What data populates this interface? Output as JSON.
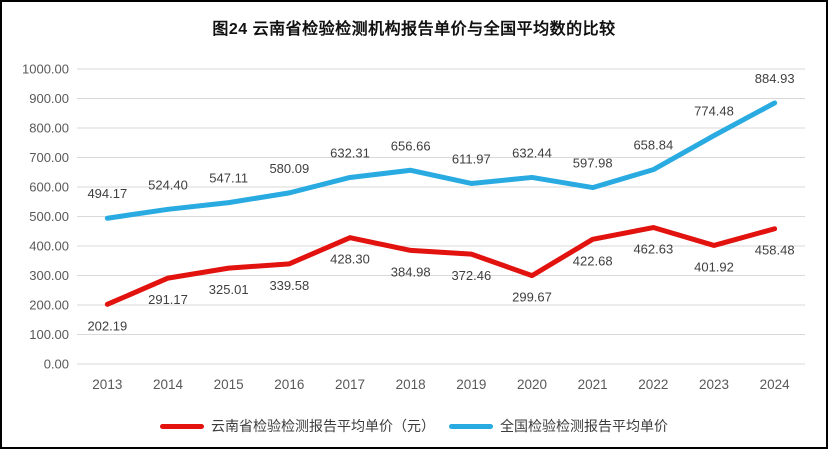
{
  "page": {
    "background_color": "#ffffff",
    "border_color": "#000000"
  },
  "chart_data": {
    "type": "line",
    "title": "图24 云南省检验检测机构报告单价与全国平均数的比较",
    "categories": [
      "2013",
      "2014",
      "2015",
      "2016",
      "2017",
      "2018",
      "2019",
      "2020",
      "2021",
      "2022",
      "2023",
      "2024"
    ],
    "series": [
      {
        "name": "云南省检验检测报告平均单价（元）",
        "color": "#e2120e",
        "label_position": "below",
        "values": [
          202.19,
          291.17,
          325.01,
          339.58,
          428.3,
          384.98,
          372.46,
          299.67,
          422.68,
          462.63,
          401.92,
          458.48
        ]
      },
      {
        "name": "全国检验检测报告平均单价",
        "color": "#29abe2",
        "label_position": "above",
        "values": [
          494.17,
          524.4,
          547.11,
          580.09,
          632.31,
          656.66,
          611.97,
          632.44,
          597.98,
          658.84,
          774.48,
          884.93
        ]
      }
    ],
    "ylim": [
      0,
      1000
    ],
    "ytick_step": 100,
    "ytick_decimals": 2,
    "grid": true,
    "gridline_color": "#d9d9d9",
    "axis_label_color": "#595959",
    "data_label_color": "#3f3f3f",
    "legend_position": "bottom"
  }
}
